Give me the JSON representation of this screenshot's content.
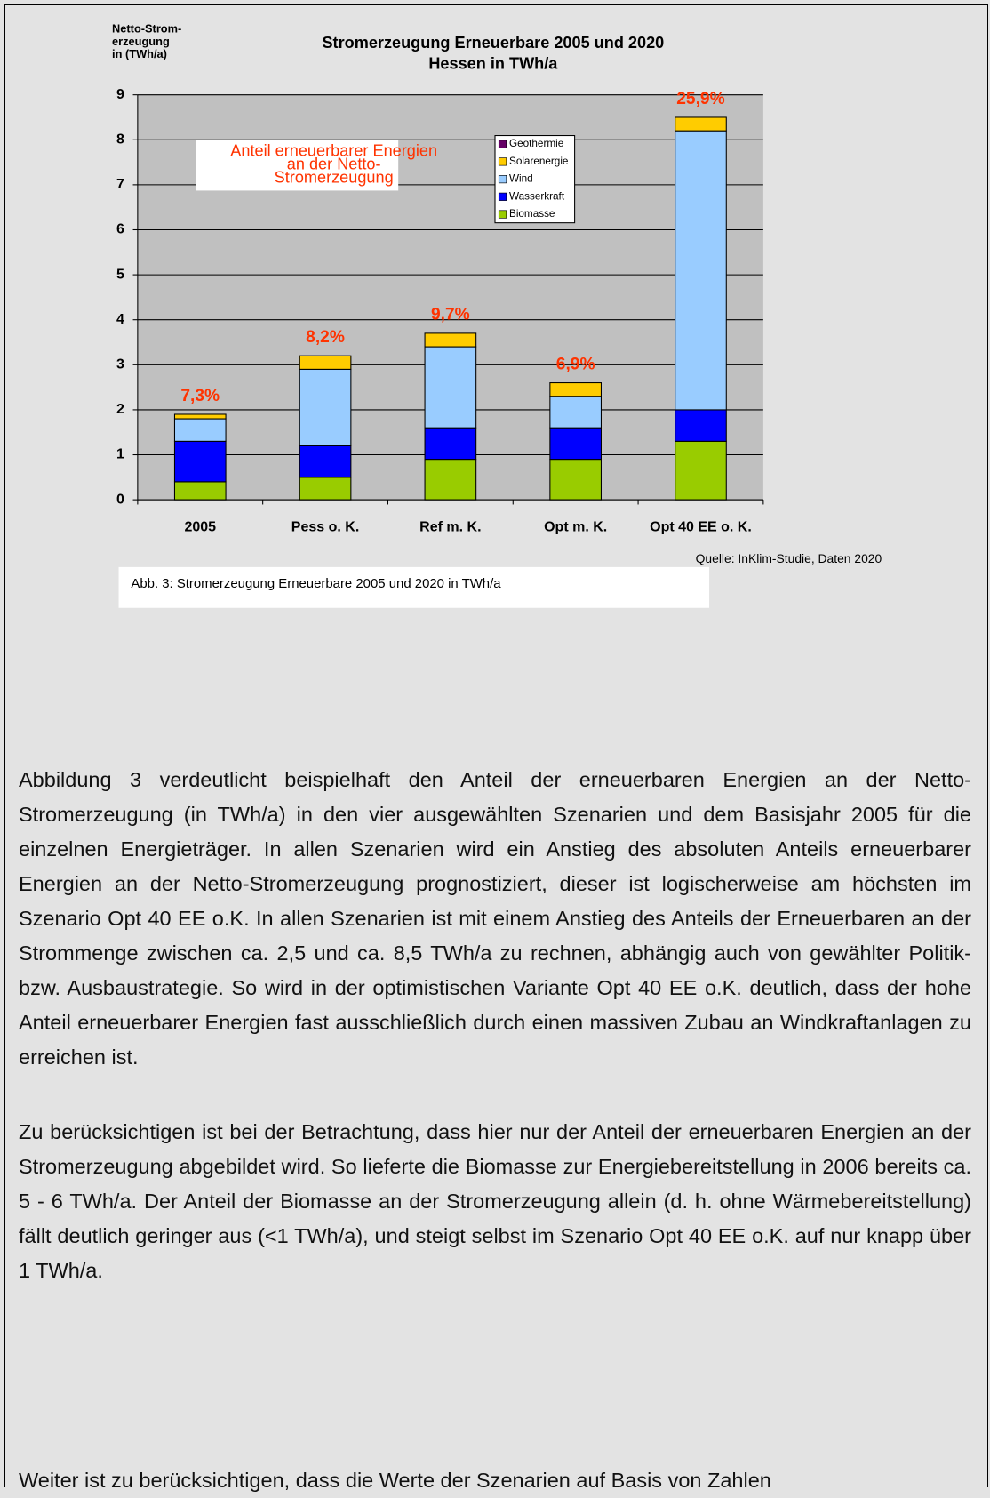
{
  "chart_data": {
    "type": "stacked_bar",
    "title": [
      "Stromerzeugung Erneuerbare 2005 und 2020",
      "Hessen in TWh/a"
    ],
    "ylabel": [
      "Netto-Strom-",
      "erzeugung",
      "in (TWh/a)"
    ],
    "categories": [
      "2005",
      "Pess o. K.",
      "Ref m. K.",
      "Opt m. K.",
      "Opt 40 EE o. K."
    ],
    "series": [
      {
        "name": "Biomasse",
        "color": "#99cc00",
        "values": [
          0.4,
          0.5,
          0.9,
          0.9,
          1.3
        ]
      },
      {
        "name": "Wasserkraft",
        "color": "#0000ff",
        "values": [
          0.9,
          0.7,
          0.7,
          0.7,
          0.7
        ]
      },
      {
        "name": "Wind",
        "color": "#99ccff",
        "values": [
          0.5,
          1.7,
          1.8,
          0.7,
          6.2
        ]
      },
      {
        "name": "Solarenergie",
        "color": "#ffcc00",
        "values": [
          0.1,
          0.3,
          0.3,
          0.3,
          0.3
        ]
      },
      {
        "name": "Geothermie",
        "color": "#660066",
        "values": [
          0,
          0,
          0,
          0,
          0
        ]
      }
    ],
    "share_labels": [
      "7,3%",
      "8,2%",
      "9,7%",
      "6,9%",
      "25,9%"
    ],
    "annotation": [
      "Anteil erneuerbarer Energien",
      "an der Netto-",
      "Stromerzeugung"
    ],
    "source": "Quelle: InKlim-Studie, Daten 2020",
    "ylim": [
      0,
      9
    ],
    "yticks": [
      0,
      1,
      2,
      3,
      4,
      5,
      6,
      7,
      8,
      9
    ],
    "grid": true
  },
  "caption": "Abb. 3: Stromerzeugung Erneuerbare 2005 und 2020 in TWh/a",
  "paragraphs": [
    "Abbildung 3 verdeutlicht beispielhaft den Anteil der erneuerbaren Energien an der Netto-Stromerzeugung (in TWh/a) in den vier ausgewählten Szenarien und dem Basisjahr 2005 für die einzelnen Energieträger. In allen Szenarien wird ein Anstieg des absoluten Anteils erneuerbarer Energien an der Netto-Stromerzeugung prognostiziert, dieser ist logischerweise am höchsten im Szenario Opt 40 EE o.K. In allen Szenarien ist mit einem Anstieg des Anteils der Erneuerbaren an der Strommenge zwischen ca. 2,5 und ca. 8,5 TWh/a zu rechnen, abhängig auch von gewählter Politik- bzw. Ausbaustrategie. So wird in der optimistischen Variante Opt 40 EE o.K. deutlich, dass der hohe Anteil erneuerbarer Energien fast ausschließlich durch einen massiven Zubau an Windkraftanlagen zu erreichen ist.",
    "Zu berücksichtigen ist bei der Betrachtung, dass hier nur der Anteil der erneuerbaren Energien an der Stromerzeugung abgebildet wird. So lieferte die Biomasse zur Energiebereitstellung in 2006 bereits ca. 5 - 6 TWh/a. Der Anteil der Biomasse an der Stromerzeugung allein (d. h. ohne Wärmebereitstellung) fällt deutlich geringer aus (<1 TWh/a), und steigt selbst im Szenario Opt 40 EE o.K. auf nur knapp über 1 TWh/a.",
    "Weiter ist zu berücksichtigen, dass die Werte der Szenarien auf Basis von Zahlen"
  ]
}
